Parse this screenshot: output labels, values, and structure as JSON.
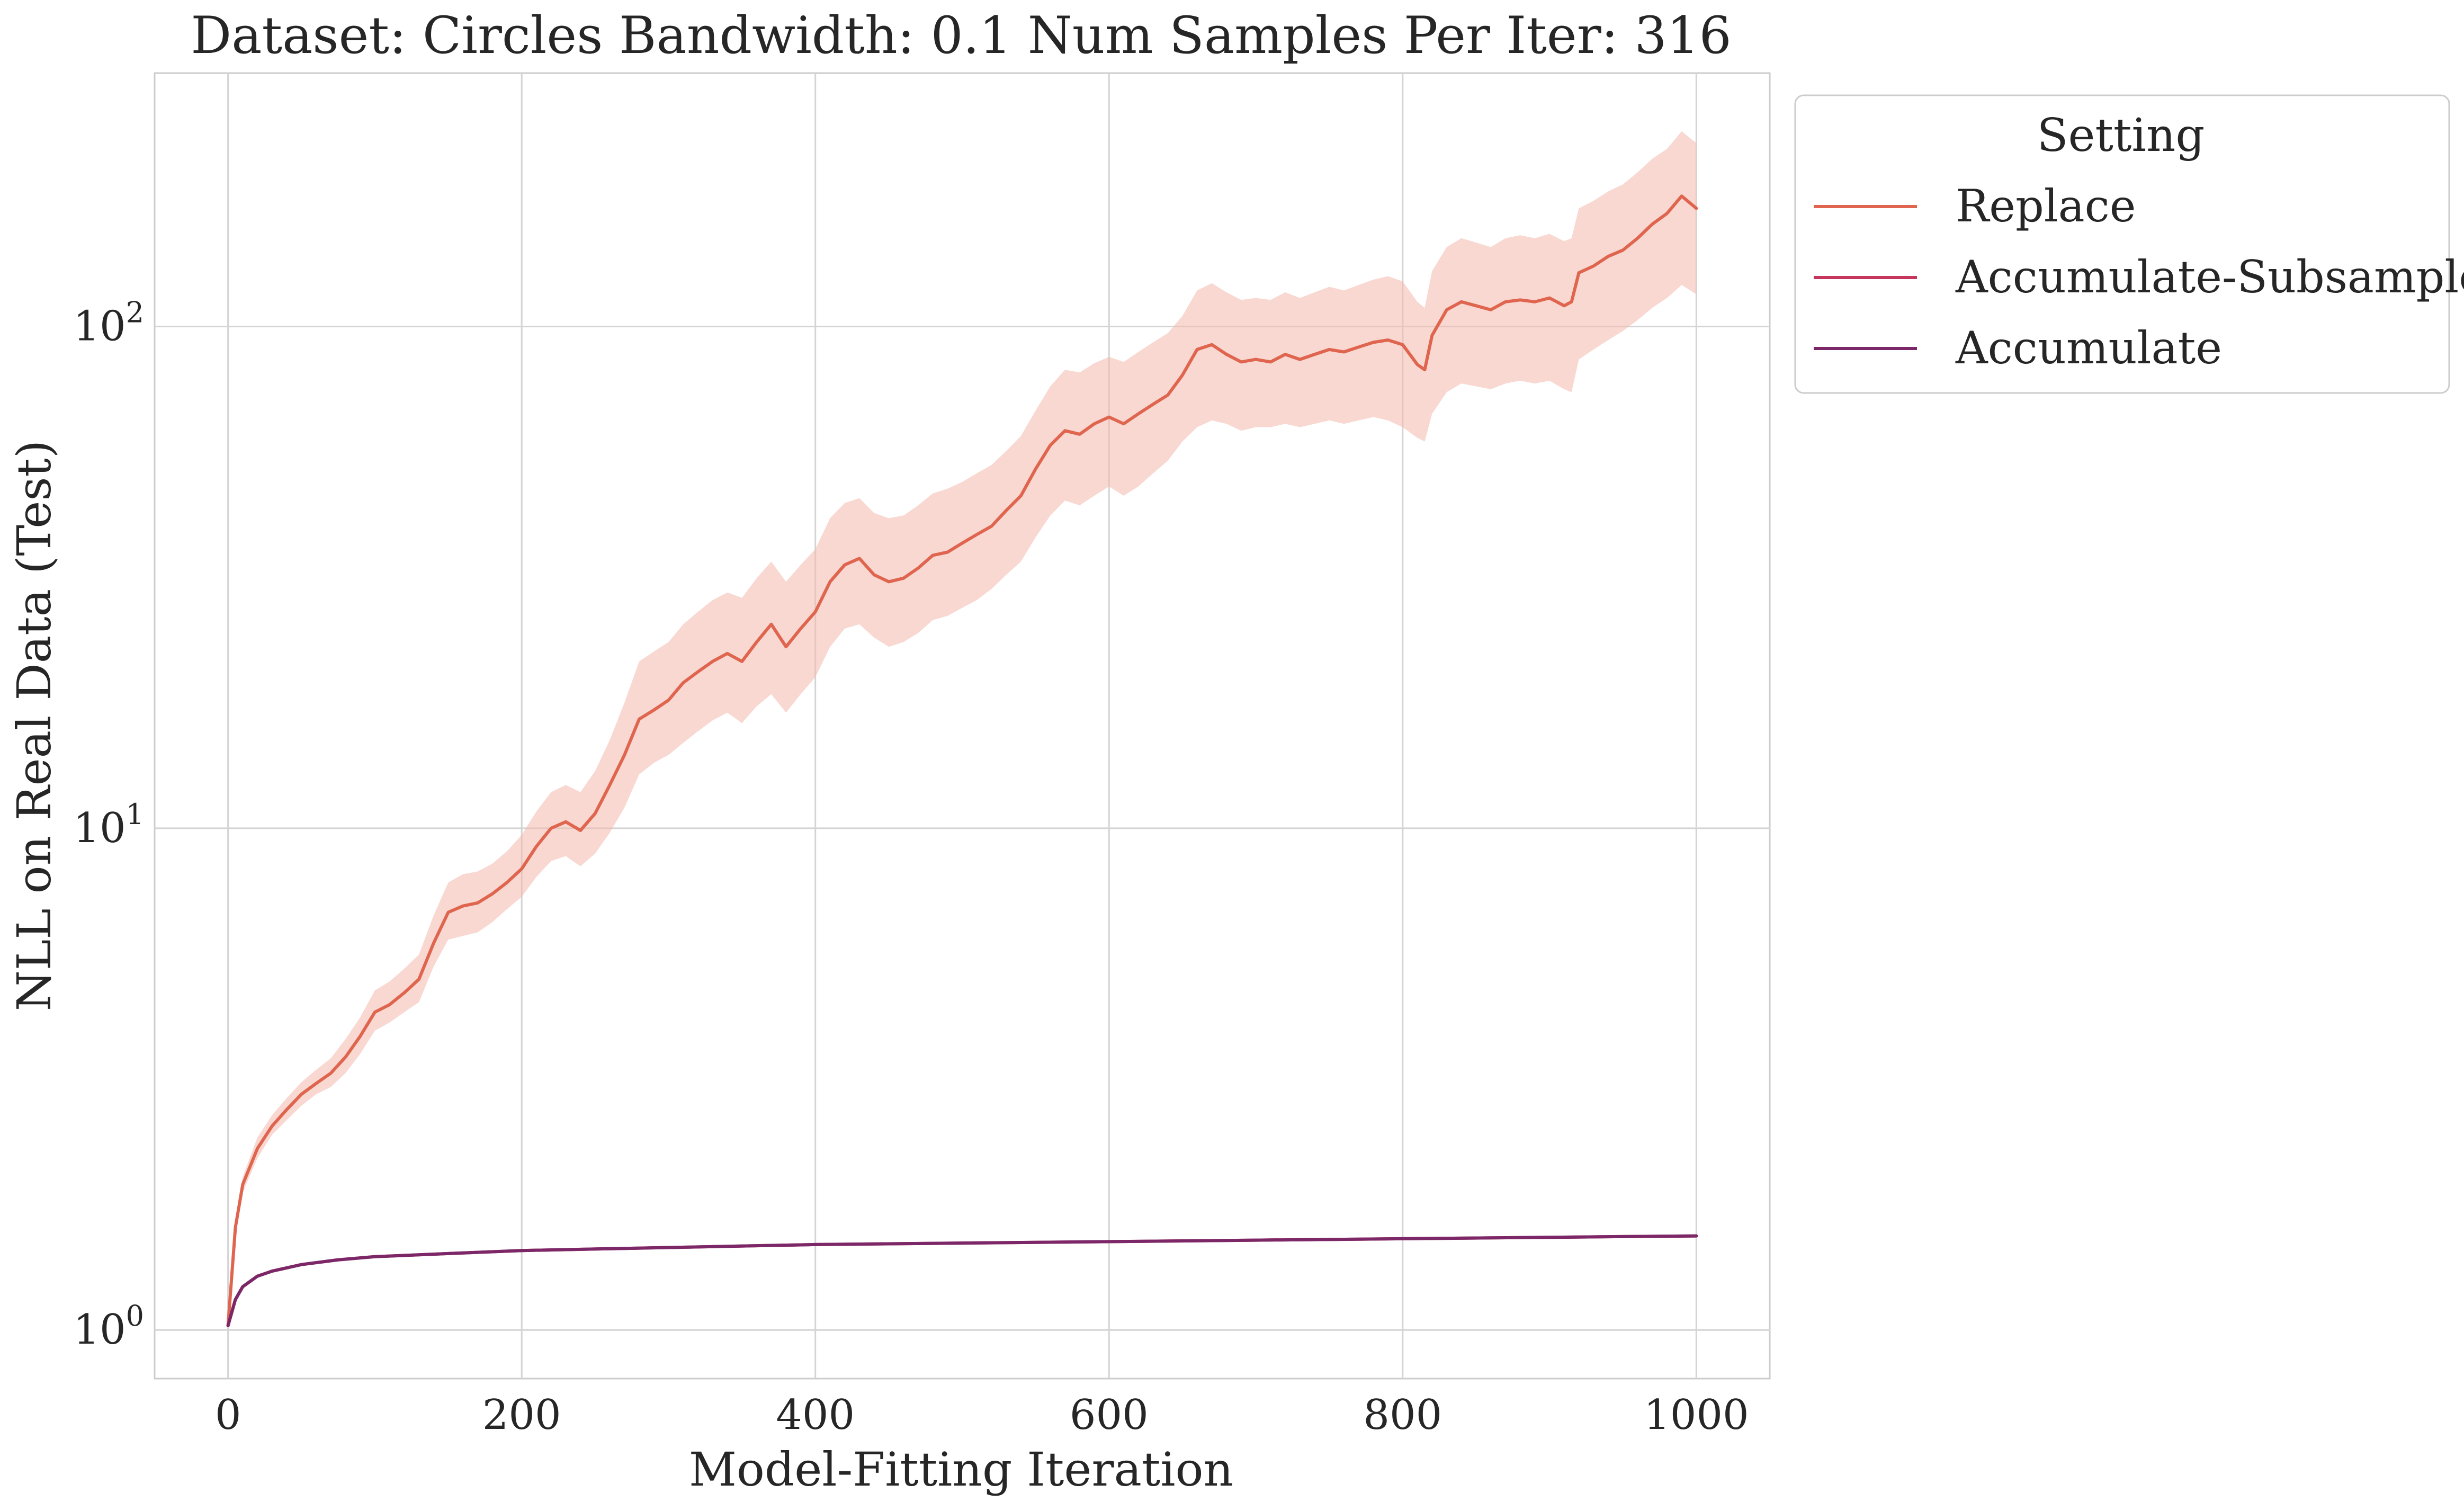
{
  "chart_data": {
    "type": "line",
    "title": "Dataset: Circles Bandwidth: 0.1 Num Samples Per Iter: 316",
    "xlabel": "Model-Fitting Iteration",
    "ylabel": "NLL on Real Data (Test)",
    "xlim": [
      -50,
      1050
    ],
    "ylim": [
      0.8,
      320
    ],
    "yscale": "log",
    "grid": true,
    "x_ticks": [
      {
        "value": 0,
        "label": "0"
      },
      {
        "value": 200,
        "label": "200"
      },
      {
        "value": 400,
        "label": "400"
      },
      {
        "value": 600,
        "label": "600"
      },
      {
        "value": 800,
        "label": "800"
      },
      {
        "value": 1000,
        "label": "1000"
      }
    ],
    "y_ticks": [
      {
        "value": 1,
        "base": "10",
        "exp": "0"
      },
      {
        "value": 10,
        "base": "10",
        "exp": "1"
      },
      {
        "value": 100,
        "base": "10",
        "exp": "2"
      }
    ],
    "legend": {
      "title": "Setting",
      "placement": "outside-right-top"
    },
    "series": [
      {
        "name": "Replace",
        "color": "#e0654f",
        "band_color": "#f2b8ab",
        "x": [
          0,
          5,
          10,
          20,
          30,
          40,
          50,
          60,
          70,
          80,
          90,
          100,
          110,
          120,
          130,
          140,
          150,
          160,
          170,
          180,
          190,
          200,
          210,
          220,
          230,
          240,
          250,
          260,
          270,
          280,
          290,
          300,
          310,
          320,
          330,
          340,
          350,
          360,
          370,
          380,
          390,
          400,
          410,
          420,
          430,
          440,
          450,
          460,
          470,
          480,
          490,
          500,
          510,
          520,
          530,
          540,
          550,
          560,
          570,
          580,
          590,
          600,
          610,
          620,
          630,
          640,
          650,
          660,
          670,
          680,
          690,
          700,
          710,
          720,
          730,
          740,
          750,
          760,
          770,
          780,
          790,
          800,
          810,
          815,
          820,
          830,
          840,
          850,
          860,
          870,
          880,
          890,
          900,
          910,
          915,
          920,
          930,
          940,
          950,
          960,
          970,
          980,
          990,
          1000
        ],
        "y": [
          1.02,
          1.6,
          1.95,
          2.3,
          2.55,
          2.75,
          2.95,
          3.1,
          3.25,
          3.5,
          3.85,
          4.3,
          4.45,
          4.7,
          5.0,
          5.9,
          6.8,
          7.0,
          7.1,
          7.4,
          7.8,
          8.3,
          9.2,
          10.0,
          10.3,
          9.9,
          10.7,
          12.2,
          14.0,
          16.5,
          17.2,
          18.0,
          19.5,
          20.5,
          21.5,
          22.3,
          21.5,
          23.5,
          25.5,
          23.0,
          25.0,
          27.0,
          31.0,
          33.5,
          34.5,
          32.0,
          31.0,
          31.5,
          33.0,
          35.0,
          35.5,
          37.0,
          38.5,
          40.0,
          43.0,
          46.0,
          52.0,
          58.0,
          62.0,
          61.0,
          64.0,
          66.0,
          64.0,
          67.0,
          70.0,
          73.0,
          80.0,
          90.0,
          92.0,
          88.0,
          85.0,
          86.0,
          85.0,
          88.0,
          86.0,
          88.0,
          90.0,
          89.0,
          91.0,
          93.0,
          94.0,
          92.0,
          84.0,
          82.0,
          96.0,
          108.0,
          112.0,
          110.0,
          108.0,
          112.0,
          113.0,
          112.0,
          114.0,
          110.0,
          112.0,
          128.0,
          132.0,
          138.0,
          142.0,
          150.0,
          160.0,
          168.0,
          182.0,
          172.0
        ],
        "lower": [
          1.0,
          1.55,
          1.88,
          2.2,
          2.45,
          2.62,
          2.8,
          2.95,
          3.05,
          3.25,
          3.55,
          3.95,
          4.1,
          4.3,
          4.5,
          5.3,
          6.0,
          6.1,
          6.2,
          6.5,
          6.9,
          7.3,
          8.0,
          8.6,
          8.8,
          8.4,
          8.9,
          9.8,
          11.0,
          12.8,
          13.5,
          14.0,
          14.8,
          15.6,
          16.4,
          17.0,
          16.2,
          17.5,
          18.5,
          17.0,
          18.5,
          20.0,
          23.0,
          25.0,
          25.5,
          24.0,
          23.0,
          23.5,
          24.5,
          26.0,
          26.5,
          27.5,
          28.5,
          30.0,
          32.0,
          34.0,
          38.0,
          42.0,
          45.0,
          44.0,
          46.0,
          48.0,
          46.0,
          48.0,
          51.0,
          54.0,
          59.0,
          63.0,
          65.0,
          64.0,
          62.0,
          63.0,
          63.0,
          64.0,
          63.0,
          64.0,
          65.0,
          64.0,
          65.0,
          66.0,
          65.0,
          63.0,
          60.0,
          59.0,
          67.0,
          74.0,
          77.0,
          76.0,
          75.0,
          77.0,
          78.0,
          77.0,
          78.0,
          75.0,
          74.0,
          86.0,
          90.0,
          94.0,
          98.0,
          103.0,
          109.0,
          114.0,
          121.0,
          116.0
        ],
        "upper": [
          1.04,
          1.65,
          2.02,
          2.42,
          2.68,
          2.9,
          3.12,
          3.3,
          3.48,
          3.8,
          4.2,
          4.75,
          4.95,
          5.25,
          5.6,
          6.7,
          7.8,
          8.1,
          8.2,
          8.5,
          9.0,
          9.7,
          10.8,
          11.8,
          12.2,
          11.8,
          13.0,
          15.0,
          17.8,
          21.5,
          22.5,
          23.5,
          25.5,
          27.0,
          28.5,
          29.5,
          28.8,
          31.5,
          34.0,
          31.0,
          33.5,
          36.0,
          41.5,
          44.5,
          45.5,
          42.5,
          41.5,
          42.0,
          44.0,
          46.5,
          47.5,
          49.0,
          51.0,
          53.0,
          56.5,
          60.5,
          68.0,
          76.0,
          82.0,
          81.0,
          84.5,
          87.0,
          85.0,
          89.0,
          93.0,
          97.0,
          105.0,
          118.0,
          122.0,
          117.0,
          113.0,
          114.0,
          113.0,
          117.0,
          114.0,
          117.0,
          120.0,
          118.0,
          121.0,
          124.0,
          126.0,
          123.0,
          112.0,
          109.0,
          129.0,
          144.0,
          150.0,
          147.0,
          144.0,
          150.0,
          152.0,
          150.0,
          153.0,
          148.0,
          150.0,
          172.0,
          178.0,
          186.0,
          192.0,
          203.0,
          216.0,
          226.0,
          245.0,
          232.0
        ]
      },
      {
        "name": "Accumulate-Subsample",
        "color": "#c6355c",
        "x": [
          0,
          5,
          10,
          20,
          30,
          40,
          50,
          75,
          100,
          150,
          200,
          300,
          400,
          500,
          600,
          700,
          800,
          900,
          1000
        ],
        "y": [
          1.02,
          1.15,
          1.22,
          1.28,
          1.31,
          1.33,
          1.35,
          1.38,
          1.4,
          1.42,
          1.44,
          1.46,
          1.48,
          1.49,
          1.5,
          1.51,
          1.52,
          1.53,
          1.54
        ]
      },
      {
        "name": "Accumulate",
        "color": "#7b2768",
        "x": [
          0,
          5,
          10,
          20,
          30,
          40,
          50,
          75,
          100,
          150,
          200,
          300,
          400,
          500,
          600,
          700,
          800,
          900,
          1000
        ],
        "y": [
          1.02,
          1.15,
          1.22,
          1.28,
          1.31,
          1.33,
          1.35,
          1.38,
          1.4,
          1.42,
          1.44,
          1.46,
          1.48,
          1.49,
          1.5,
          1.51,
          1.52,
          1.53,
          1.54
        ]
      }
    ]
  }
}
